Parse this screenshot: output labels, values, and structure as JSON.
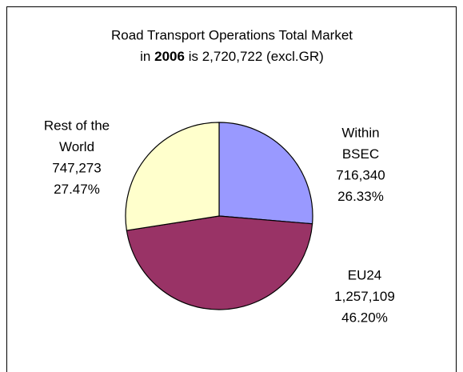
{
  "chart_data": {
    "type": "pie",
    "title": "Road Transport Operations Total Market",
    "subtitle": [
      "in",
      "2006",
      "is 2,720,722 (excl.GR)"
    ],
    "categories": [
      [
        "Within",
        "BSEC"
      ],
      [
        "EU24"
      ],
      [
        "Rest of the",
        "World"
      ]
    ],
    "values": [
      716340,
      1257109,
      747273
    ],
    "value_labels": [
      "716,340",
      "1,257,109",
      "747,273"
    ],
    "percentages": [
      26.33,
      46.2,
      27.47
    ],
    "percent_labels": [
      "26.33%",
      "46.20%",
      "27.47%"
    ],
    "colors": [
      "#9999ff",
      "#993366",
      "#ffffcc"
    ]
  }
}
